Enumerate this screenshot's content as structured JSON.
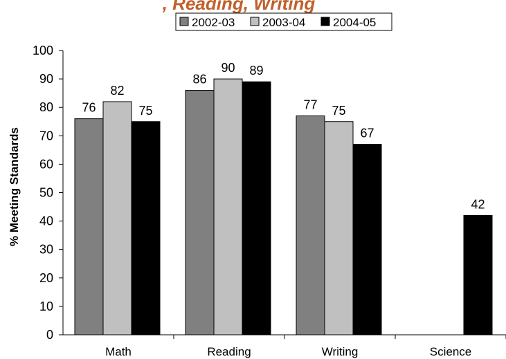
{
  "chart_data": {
    "type": "bar",
    "title": ", Reading, Writing",
    "ylabel": "% Meeting Standards",
    "xlabel": "",
    "categories": [
      "Math",
      "Reading",
      "Writing",
      "Science"
    ],
    "series": [
      {
        "name": "2002-03",
        "color": "#808080",
        "values": [
          76,
          86,
          77,
          null
        ],
        "labels": [
          "76",
          "86",
          "77",
          ""
        ]
      },
      {
        "name": "2003-04",
        "color": "#c0c0c0",
        "values": [
          82,
          90,
          75,
          null
        ],
        "labels": [
          "82",
          "90",
          "75",
          ""
        ]
      },
      {
        "name": "2004-05",
        "color": "#000000",
        "values": [
          75,
          89,
          67,
          42
        ],
        "labels": [
          "75",
          "89",
          "67",
          "42"
        ]
      }
    ],
    "ylim": [
      0,
      100
    ],
    "yticks": [
      "0",
      "10",
      "20",
      "30",
      "40",
      "50",
      "60",
      "70",
      "80",
      "90",
      "100"
    ],
    "grid": false,
    "legend_position": "top"
  }
}
